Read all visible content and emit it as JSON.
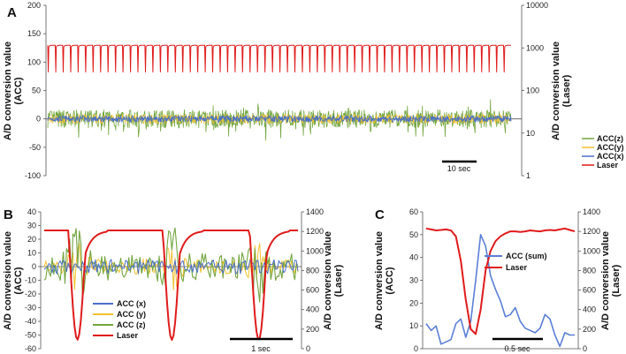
{
  "colors": {
    "acc_x": "#4a6fc9",
    "acc_y": "#f2c12e",
    "acc_z": "#73a53f",
    "laser": "#e01b1b",
    "acc_sum": "#5b7fd6"
  },
  "chart_data": [
    {
      "panel": "A",
      "type": "line",
      "ylabel": "A/D conversion value (ACC)",
      "y2label": "A/D conversion value (Laser)",
      "ylim": [
        -100,
        200
      ],
      "yticks": [
        "-100",
        "-50",
        "0",
        "50",
        "100",
        "150",
        "200"
      ],
      "y2lim": [
        1,
        10000
      ],
      "y2scale": "log",
      "y2ticks": [
        "1",
        "10",
        "100",
        "1000",
        "10000"
      ],
      "legend": [
        "ACC(z)",
        "ACC(y)",
        "ACC(x)",
        "Laser"
      ],
      "scale_bar": "10 sec",
      "series": [
        {
          "name": "Laser",
          "axis": "right",
          "baseline": 1150,
          "trough": 230,
          "beats": 62
        },
        {
          "name": "ACC(z)",
          "axis": "left",
          "amplitude": 40
        },
        {
          "name": "ACC(y)",
          "axis": "left",
          "amplitude": 12
        },
        {
          "name": "ACC(x)",
          "axis": "left",
          "amplitude": 8
        }
      ]
    },
    {
      "panel": "B",
      "type": "line",
      "ylabel": "A/D conversion value (ACC)",
      "y2label": "A/D conversion value (Laser)",
      "ylim": [
        -60,
        40
      ],
      "yticks": [
        "-60",
        "-50",
        "-40",
        "-30",
        "-20",
        "-10",
        "0",
        "10",
        "20",
        "30",
        "40"
      ],
      "y2lim": [
        0,
        1400
      ],
      "y2ticks": [
        "0",
        "200",
        "400",
        "600",
        "800",
        "1000",
        "1200",
        "1400"
      ],
      "legend": [
        "ACC (x)",
        "ACC (y)",
        "ACC (z)",
        "Laser"
      ],
      "scale_bar": "1 sec",
      "series": [
        {
          "name": "Laser",
          "axis": "right",
          "baseline": 1210,
          "trough": 90,
          "troughs_at_fraction": [
            0.13,
            0.5,
            0.84
          ]
        },
        {
          "name": "ACC (x)",
          "axis": "left",
          "amplitude": 6
        },
        {
          "name": "ACC (y)",
          "axis": "left",
          "amplitude": 14
        },
        {
          "name": "ACC (z)",
          "axis": "left",
          "amplitude": 28
        }
      ]
    },
    {
      "panel": "C",
      "type": "line",
      "ylabel": "A/D conversion value (ACC)",
      "y2label": "A/D conversion value (Laser)",
      "ylim": [
        0,
        60
      ],
      "yticks": [
        "0",
        "10",
        "20",
        "30",
        "40",
        "50",
        "60"
      ],
      "y2lim": [
        0,
        1400
      ],
      "y2ticks": [
        "0",
        "200",
        "400",
        "600",
        "800",
        "1000",
        "1200",
        "1400"
      ],
      "legend": [
        "ACC (sum)",
        "Laser"
      ],
      "scale_bar": "0.5 sec",
      "series": [
        {
          "name": "ACC (sum)",
          "axis": "left",
          "values": [
            11,
            8,
            10,
            2,
            3,
            4,
            11,
            13,
            5,
            12,
            30,
            50,
            45,
            32,
            26,
            21,
            14,
            15,
            18,
            12,
            9,
            8,
            7,
            9,
            15,
            13,
            6,
            1,
            7,
            6,
            6
          ]
        },
        {
          "name": "Laser",
          "axis": "right",
          "values": [
            1230,
            1220,
            1210,
            1215,
            1220,
            1210,
            1150,
            900,
            500,
            200,
            150,
            400,
            800,
            1000,
            1100,
            1150,
            1180,
            1200,
            1200,
            1195,
            1200,
            1210,
            1205,
            1200,
            1210,
            1215,
            1210,
            1220,
            1230,
            1215,
            1200
          ]
        }
      ]
    }
  ]
}
